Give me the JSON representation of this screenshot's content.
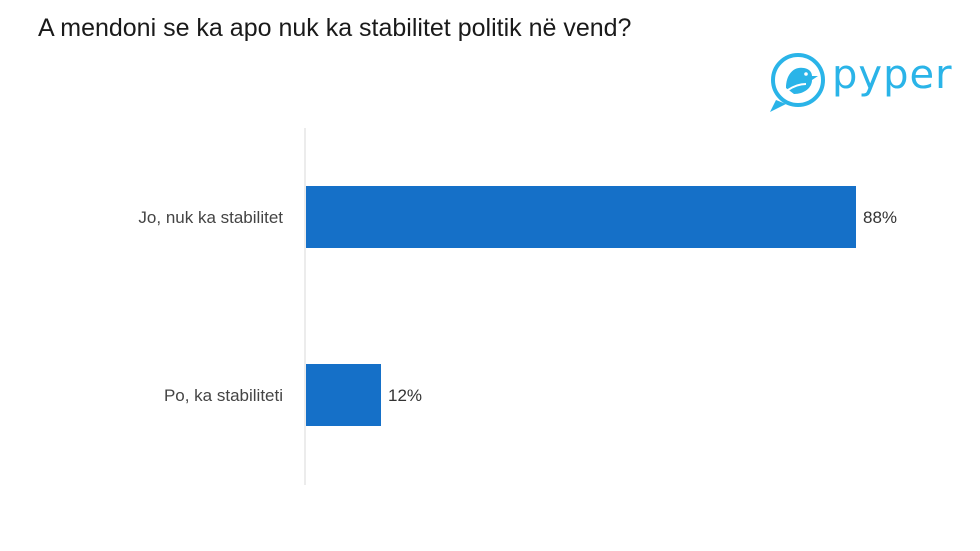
{
  "title": "A mendoni se ka apo nuk ka stabilitet politik në vend?",
  "logo": {
    "text": "pyper",
    "icon": "bird-icon",
    "color": "#2ab4e8"
  },
  "chart_data": {
    "type": "bar",
    "orientation": "horizontal",
    "categories": [
      "Jo, nuk ka stabilitet",
      "Po, ka stabiliteti"
    ],
    "values": [
      88,
      12
    ],
    "value_labels": [
      "88%",
      "12%"
    ],
    "xlim": [
      0,
      100
    ],
    "bar_color": "#1570c8",
    "grid": false,
    "legend": "none"
  }
}
